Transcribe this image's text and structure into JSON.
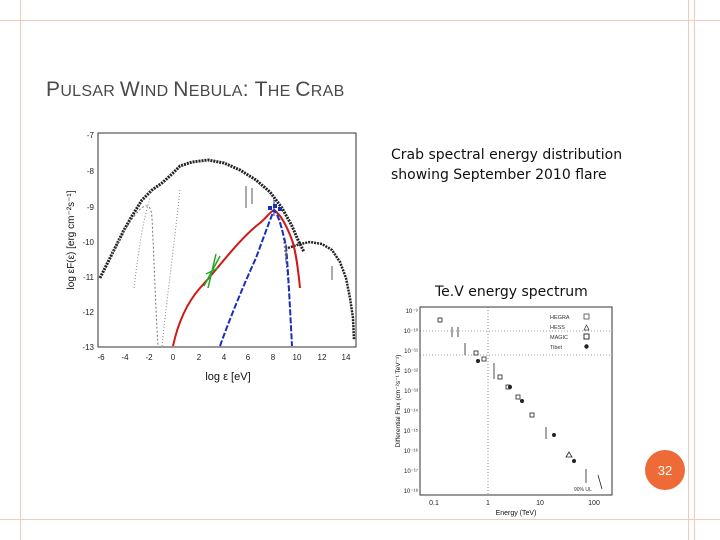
{
  "slide": {
    "title_parts": [
      {
        "text": "P",
        "size": "big"
      },
      {
        "text": "ULSAR ",
        "size": "small"
      },
      {
        "text": "W",
        "size": "big"
      },
      {
        "text": "IND ",
        "size": "small"
      },
      {
        "text": "N",
        "size": "big"
      },
      {
        "text": "EBULA",
        "size": "small"
      },
      {
        "text": ": T",
        "size": "big"
      },
      {
        "text": "HE ",
        "size": "small"
      },
      {
        "text": "C",
        "size": "big"
      },
      {
        "text": "RAB",
        "size": "small"
      }
    ],
    "caption_sed_line1": "Crab spectral energy distribution",
    "caption_sed_line2": "showing September 2010 flare",
    "caption_tev": "Te.V energy spectrum",
    "slide_number": "32",
    "accent_color": "#ee6a36"
  },
  "sed_figure": {
    "ylabel": "log εF(ε) [erg cm⁻²s⁻¹]",
    "xlabel": "log ε [eV]",
    "y_ticks": [
      "-7",
      "-8",
      "-9",
      "-10",
      "-11",
      "-12",
      "-13"
    ],
    "x_ticks": [
      "-6",
      "-4",
      "-2",
      "0",
      "2",
      "4",
      "6",
      "8",
      "10",
      "12",
      "14"
    ]
  },
  "tev_figure": {
    "ylabel": "Differential Flux (cm⁻²s⁻¹ TeV⁻¹)",
    "xlabel": "Energy (TeV)",
    "y_ticks": [
      "10⁻⁹",
      "10⁻¹⁰",
      "10⁻¹¹",
      "10⁻¹²",
      "10⁻¹³",
      "10⁻¹⁴",
      "10⁻¹⁵",
      "10⁻¹⁶",
      "10⁻¹⁷",
      "10⁻¹⁸"
    ],
    "x_ticks": [
      "0.1",
      "1",
      "10",
      "100"
    ],
    "legend": [
      "HEGRA",
      "HESS",
      "MAGIC",
      "Tibet"
    ],
    "annotation": "90% UL"
  }
}
